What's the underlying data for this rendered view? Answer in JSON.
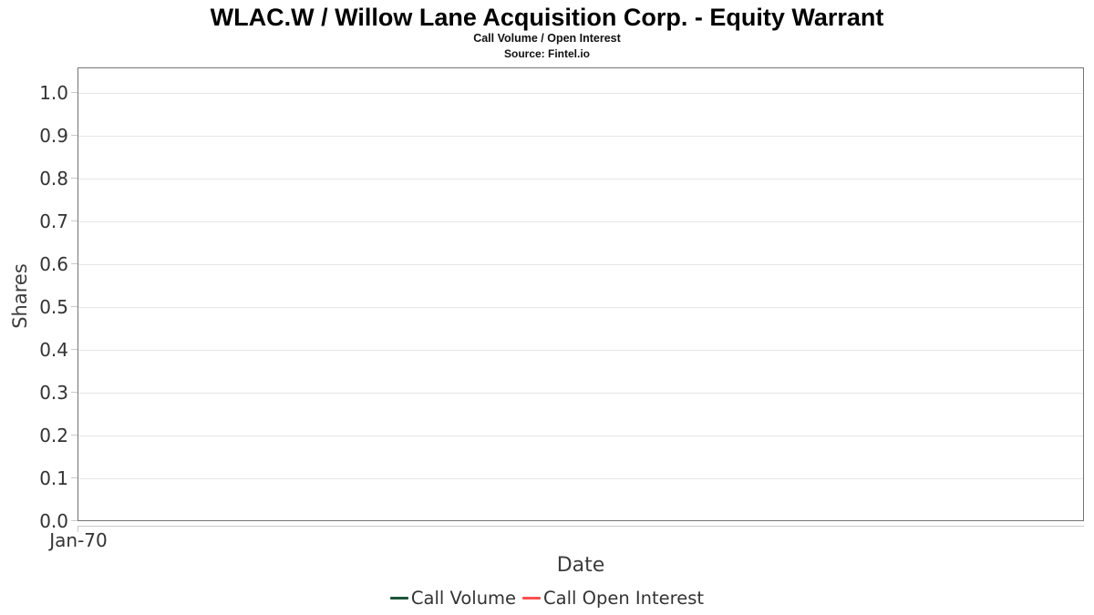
{
  "chart_data": {
    "type": "line",
    "title": "WLAC.W / Willow Lane Acquisition Corp. - Equity Warrant",
    "subtitle": "Call Volume / Open Interest",
    "source": "Source: Fintel.io",
    "xlabel": "Date",
    "ylabel": "Shares",
    "xticks": [
      "Jan-70"
    ],
    "ytick_labels": [
      "0.0",
      "0.1",
      "0.2",
      "0.3",
      "0.4",
      "0.5",
      "0.6",
      "0.7",
      "0.8",
      "0.9",
      "1.0"
    ],
    "ylim": [
      0.0,
      1.06
    ],
    "grid": true,
    "legend_position": "bottom",
    "plot_border_color": "#757575",
    "gridline_color": "#e6e6e6",
    "series": [
      {
        "name": "Call Volume",
        "color": "#1d5438",
        "x": [],
        "values": []
      },
      {
        "name": "Call Open Interest",
        "color": "#fb514f",
        "x": [],
        "values": []
      }
    ]
  }
}
